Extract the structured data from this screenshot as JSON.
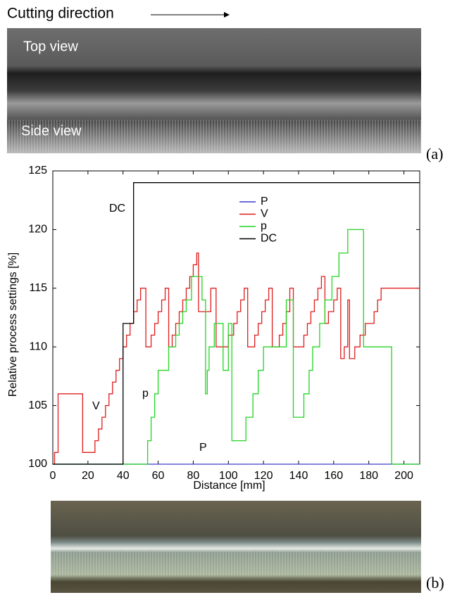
{
  "figure": {
    "header": "Cutting direction",
    "top_view": "Top view",
    "side_view": "Side view",
    "label_a": "(a)",
    "label_b": "(b)"
  },
  "chart_data": {
    "type": "line",
    "ylabel": "Relative process settings [%]",
    "xlabel": "Distance [mm]",
    "xlim": [
      0,
      209
    ],
    "ylim": [
      100,
      125
    ],
    "xticks": [
      0,
      20,
      40,
      60,
      80,
      100,
      120,
      140,
      160,
      180,
      200
    ],
    "yticks": [
      100,
      105,
      110,
      115,
      120,
      125
    ],
    "legend": "upper center",
    "annotations": [
      "DC",
      "V",
      "p",
      "P"
    ],
    "series": [
      {
        "name": "P",
        "color": "#3a3acc",
        "x": [
          0
        ],
        "values": [
          100
        ]
      },
      {
        "name": "V",
        "color": "#e01c1c",
        "x": [
          0,
          1,
          3,
          17,
          24,
          26,
          28,
          30,
          32,
          34,
          36,
          38,
          40,
          42,
          44,
          46,
          48,
          50,
          53,
          56,
          58,
          60,
          62,
          64,
          66,
          68,
          70,
          72,
          74,
          76,
          78,
          80,
          82,
          83,
          90,
          93,
          100,
          103,
          105,
          107,
          109,
          111,
          115,
          117,
          119,
          121,
          123,
          125,
          129,
          131,
          133,
          135,
          137,
          143,
          145,
          147,
          149,
          151,
          153,
          155,
          157,
          160,
          162,
          164,
          166,
          168,
          169,
          172,
          175,
          178,
          183,
          185,
          187
        ],
        "values": [
          100,
          101,
          106,
          101,
          102,
          103,
          104,
          105,
          106,
          107,
          108,
          109,
          110,
          111,
          112,
          113,
          114,
          115,
          110,
          111,
          112,
          113,
          114,
          115,
          110,
          111,
          112,
          113,
          114,
          115,
          116,
          117,
          118,
          113,
          115,
          110,
          111,
          112,
          113,
          114,
          115,
          110,
          111,
          112,
          113,
          114,
          115,
          110,
          111,
          112,
          113,
          115,
          110,
          111,
          112,
          113,
          114,
          115,
          116,
          112,
          113,
          114,
          115,
          109,
          110,
          114,
          109,
          110,
          111,
          112,
          113,
          114,
          115
        ]
      },
      {
        "name": "p",
        "color": "#22d422",
        "x": [
          0,
          54,
          56,
          58,
          60,
          66,
          70,
          72,
          74,
          76,
          79,
          85,
          87,
          88,
          89,
          92,
          97,
          100,
          102,
          110,
          114,
          117,
          120,
          133,
          137,
          143,
          146,
          148,
          152,
          155,
          159,
          163,
          168,
          177,
          193
        ],
        "values": [
          100,
          102,
          104,
          106,
          108,
          110,
          111,
          112,
          113,
          114,
          116,
          114,
          106,
          108,
          110,
          112,
          108,
          112,
          102,
          104,
          106,
          108,
          110,
          114,
          104,
          106,
          108,
          110,
          112,
          114,
          116,
          118,
          120,
          110,
          100
        ]
      },
      {
        "name": "DC",
        "color": "#000000",
        "x": [
          0,
          40,
          46
        ],
        "values": [
          100,
          112,
          124
        ]
      }
    ]
  }
}
